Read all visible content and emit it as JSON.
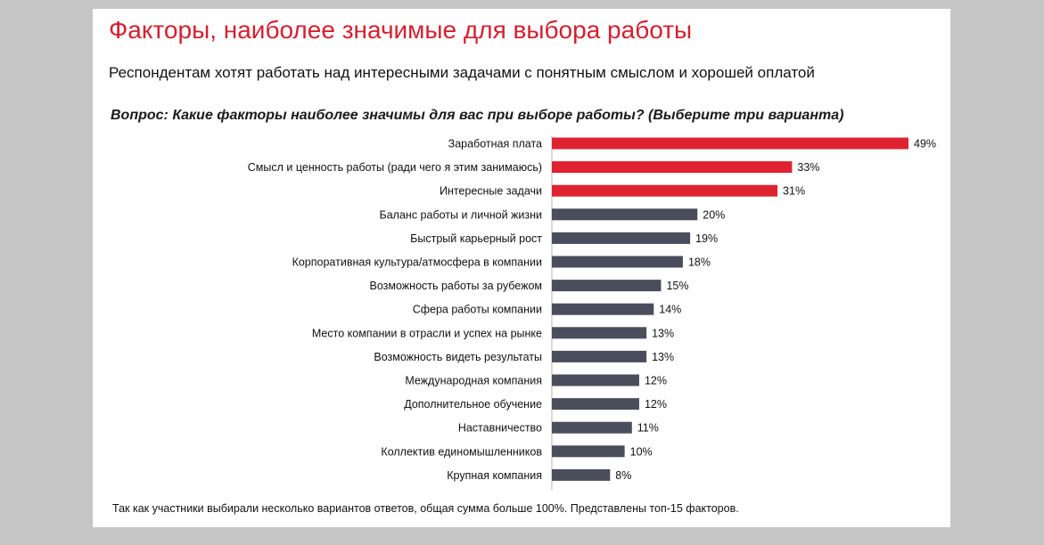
{
  "header": {
    "title": "Факторы, наиболее значимые для выбора работы",
    "subtitle": "Респондентам хотят работать над интересными задачами с понятным смыслом и хорошей оплатой",
    "question": "Вопрос: Какие факторы наиболее значимы для вас при выборе работы? (Выберите три варианта)"
  },
  "footnote": "Так как участники выбирали несколько вариантов ответов, общая сумма больше 100%. Представлены топ-15 факторов.",
  "colors": {
    "highlight": "#de2230",
    "default": "#4a4e5c",
    "axis": "#b4b4b4"
  },
  "chart_data": {
    "type": "bar",
    "orientation": "horizontal",
    "value_suffix": "%",
    "highlight_count": 3,
    "xlim": [
      0,
      49
    ],
    "categories": [
      "Заработная плата",
      "Смысл и ценность работы (ради чего я этим занимаюсь)",
      "Интересные задачи",
      "Баланс работы и личной жизни",
      "Быстрый карьерный рост",
      "Корпоративная культура/атмосфера в компании",
      "Возможность работы за рубежом",
      "Сфера работы компании",
      "Место компании в отрасли и успех на рынке",
      "Возможность видеть результаты",
      "Международная компания",
      "Дополнительное обучение",
      "Наставничество",
      "Коллектив единомышленников",
      "Крупная компания"
    ],
    "values": [
      49,
      33,
      31,
      20,
      19,
      18,
      15,
      14,
      13,
      13,
      12,
      12,
      11,
      10,
      8
    ],
    "labels": [
      "49%",
      "33%",
      "31%",
      "20%",
      "19%",
      "18%",
      "15%",
      "14%",
      "13%",
      "13%",
      "12%",
      "12%",
      "11%",
      "10%",
      "8%"
    ]
  }
}
